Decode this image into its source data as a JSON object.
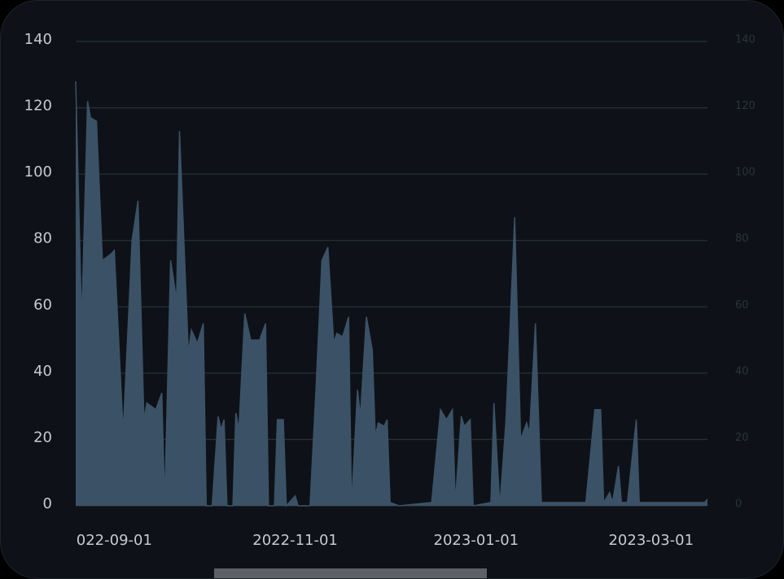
{
  "chart_data": {
    "type": "area",
    "x": [
      "2022-08-19",
      "2022-08-21",
      "2022-08-23",
      "2022-08-24",
      "2022-08-26",
      "2022-08-28",
      "2022-08-31",
      "2022-09-01",
      "2022-09-04",
      "2022-09-07",
      "2022-09-09",
      "2022-09-11",
      "2022-09-12",
      "2022-09-15",
      "2022-09-17",
      "2022-09-18",
      "2022-09-20",
      "2022-09-22",
      "2022-09-23",
      "2022-09-26",
      "2022-09-27",
      "2022-09-29",
      "2022-10-01",
      "2022-10-02",
      "2022-10-04",
      "2022-10-06",
      "2022-10-07",
      "2022-10-08",
      "2022-10-09",
      "2022-10-11",
      "2022-10-12",
      "2022-10-13",
      "2022-10-15",
      "2022-10-17",
      "2022-10-20",
      "2022-10-22",
      "2022-10-23",
      "2022-10-25",
      "2022-10-26",
      "2022-10-28",
      "2022-10-29",
      "2022-11-01",
      "2022-11-02",
      "2022-11-06",
      "2022-11-08",
      "2022-11-10",
      "2022-11-12",
      "2022-11-14",
      "2022-11-15",
      "2022-11-17",
      "2022-11-19",
      "2022-11-20",
      "2022-11-22",
      "2022-11-23",
      "2022-11-25",
      "2022-11-27",
      "2022-11-28",
      "2022-11-29",
      "2022-12-01",
      "2022-12-02",
      "2022-12-03",
      "2022-12-06",
      "2022-12-17",
      "2022-12-20",
      "2022-12-22",
      "2022-12-24",
      "2022-12-25",
      "2022-12-27",
      "2022-12-28",
      "2022-12-30",
      "2022-12-31",
      "2023-01-06",
      "2023-01-07",
      "2023-01-09",
      "2023-01-11",
      "2023-01-12",
      "2023-01-14",
      "2023-01-16",
      "2023-01-18",
      "2023-01-19",
      "2023-01-21",
      "2023-01-23",
      "2023-02-03",
      "2023-02-07",
      "2023-02-10",
      "2023-02-12",
      "2023-02-13",
      "2023-02-15",
      "2023-02-16",
      "2023-02-18",
      "2023-02-19",
      "2023-02-21",
      "2023-02-24",
      "2023-02-25",
      "2023-03-02",
      "2023-03-19",
      "2023-03-20"
    ],
    "values": [
      128,
      55,
      122,
      117,
      116,
      74,
      76,
      77,
      22,
      80,
      92,
      26,
      31,
      29,
      34,
      1,
      74,
      62,
      113,
      46,
      53,
      49,
      55,
      0,
      0,
      27,
      23,
      26,
      0,
      0,
      28,
      23,
      58,
      50,
      50,
      55,
      0,
      0,
      26,
      26,
      0,
      3,
      0,
      0,
      35,
      74,
      78,
      49,
      52,
      51,
      57,
      0,
      35,
      27,
      57,
      47,
      21,
      25,
      24,
      26,
      1,
      0,
      1,
      29,
      26,
      29,
      1,
      27,
      24,
      26,
      0,
      1,
      31,
      0,
      25,
      45,
      87,
      20,
      25,
      22,
      55,
      1,
      1,
      1,
      29,
      29,
      1,
      4,
      1,
      12,
      1,
      1,
      26,
      1,
      1,
      1,
      2
    ],
    "color": "#3b5266",
    "xlim": [
      "2022-08-19",
      "2023-03-20"
    ],
    "xticks": [
      {
        "value": "2022-09-01",
        "label": "022-09-01"
      },
      "2022-11-01",
      "2023-01-01",
      "2023-03-01"
    ],
    "ylim": [
      0,
      140
    ],
    "yticks": [
      0,
      20,
      40,
      60,
      80,
      100,
      120,
      140
    ],
    "y2lim": [
      0,
      140
    ],
    "y2ticks": [
      0,
      20,
      40,
      60,
      80,
      100,
      120,
      140
    ],
    "grid": true
  }
}
